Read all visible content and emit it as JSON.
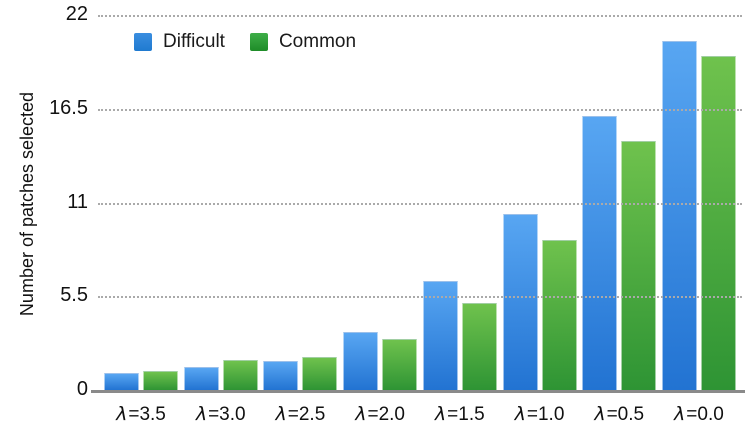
{
  "chart_data": {
    "type": "bar",
    "title": "",
    "xlabel": "",
    "ylabel": "Number of patches selected",
    "categories": [
      "λ=3.5",
      "λ=3.0",
      "λ=2.5",
      "λ=2.0",
      "λ=1.5",
      "λ=1.0",
      "λ=0.5",
      "λ=0.0"
    ],
    "series": [
      {
        "name": "Difficult",
        "color": "#2b80d8",
        "bar_gradient": [
          "#58a6f2",
          "#2273d2"
        ],
        "legend_gradient": [
          "#3a8ee0",
          "#1f7ad0"
        ],
        "values": [
          1.0,
          1.35,
          1.7,
          3.4,
          6.4,
          10.3,
          16.1,
          20.5
        ]
      },
      {
        "name": "Common",
        "color": "#2f9434",
        "bar_gradient": [
          "#6fc24d",
          "#2e9434"
        ],
        "legend_gradient": [
          "#3fae48",
          "#1e8c28"
        ],
        "values": [
          1.1,
          1.75,
          1.95,
          3.0,
          5.1,
          8.8,
          14.6,
          19.6
        ]
      }
    ],
    "y_ticks": [
      0,
      5.5,
      11,
      16.5,
      22
    ],
    "ylim": [
      0,
      22
    ],
    "grid": "horizontal-dotted",
    "grid_color": "#aaaaaa",
    "axis_color": "#8a8a8a",
    "text_color": "#111111",
    "legend_position": "top-left-inside"
  }
}
